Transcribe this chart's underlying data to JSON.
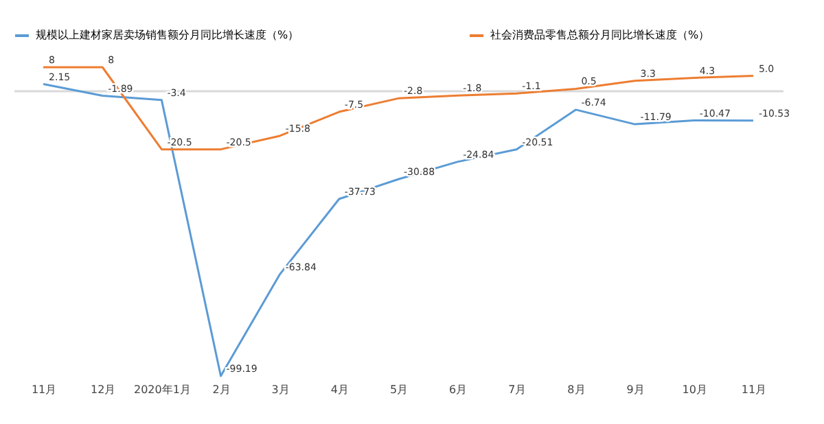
{
  "chart_data": {
    "type": "line",
    "categories": [
      "11月",
      "12月",
      "2020年1月",
      "2月",
      "3月",
      "4月",
      "5月",
      "6月",
      "7月",
      "8月",
      "9月",
      "10月",
      "11月"
    ],
    "series": [
      {
        "name": "规模以上建材家居卖场销售额分月同比增长速度（%）",
        "color": "#5b9bd5",
        "values": [
          2.15,
          -1.89,
          -3.4,
          -99.19,
          -63.84,
          -37.73,
          -30.88,
          -24.84,
          -20.51,
          -6.74,
          -11.79,
          -10.47,
          -10.53
        ],
        "value_labels": [
          "2.15",
          "-1.89",
          "-3.4",
          "-99.19",
          "-63.84",
          "-37.73",
          "-30.88",
          "-24.84",
          "-20.51",
          "-6.74",
          "-11.79",
          "-10.47",
          "-10.53"
        ]
      },
      {
        "name": "社会消费品零售总额分月同比增长速度（%）",
        "color": "#ed7d31",
        "values": [
          8,
          8,
          -20.5,
          -20.5,
          -15.8,
          -7.5,
          -2.8,
          -1.8,
          -1.1,
          0.5,
          3.3,
          4.3,
          5.0
        ],
        "value_labels": [
          "8",
          "8",
          "-20.5",
          "-20.5",
          "-15.8",
          "-7.5",
          "-2.8",
          "-1.8",
          "-1.1",
          "0.5",
          "3.3",
          "4.3",
          "5.0"
        ]
      }
    ],
    "legend": "top",
    "grid": false,
    "marker": "none",
    "line_style": "solid"
  }
}
